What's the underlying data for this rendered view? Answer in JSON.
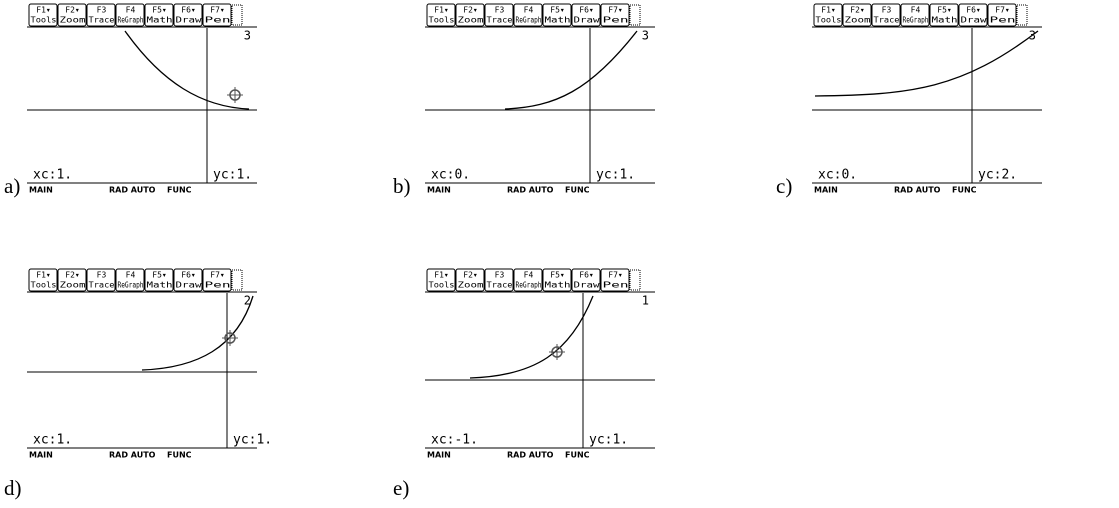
{
  "toolbar": [
    {
      "key": "F1▾",
      "label": "Tools"
    },
    {
      "key": "F2▾",
      "label": "Zoom"
    },
    {
      "key": "F3",
      "label": "Trace"
    },
    {
      "key": "F4",
      "label": "ReGraph"
    },
    {
      "key": "F5▾",
      "label": "Math"
    },
    {
      "key": "F6▾",
      "label": "Draw"
    },
    {
      "key": "F7▾",
      "label": "Pen"
    }
  ],
  "status": [
    "MAIN",
    "RAD AUTO",
    "FUNC"
  ],
  "panels": [
    {
      "label": "a)",
      "graph_number": "3",
      "xc": "xc:1.",
      "yc": "yc:1."
    },
    {
      "label": "b)",
      "graph_number": "3",
      "xc": "xc:0.",
      "yc": "yc:1."
    },
    {
      "label": "c)",
      "graph_number": "3",
      "xc": "xc:0.",
      "yc": "yc:2."
    },
    {
      "label": "d)",
      "graph_number": "2",
      "xc": "xc:1.",
      "yc": "yc:1."
    },
    {
      "label": "e)",
      "graph_number": "1",
      "xc": "xc:-1.",
      "yc": "yc:1."
    }
  ]
}
